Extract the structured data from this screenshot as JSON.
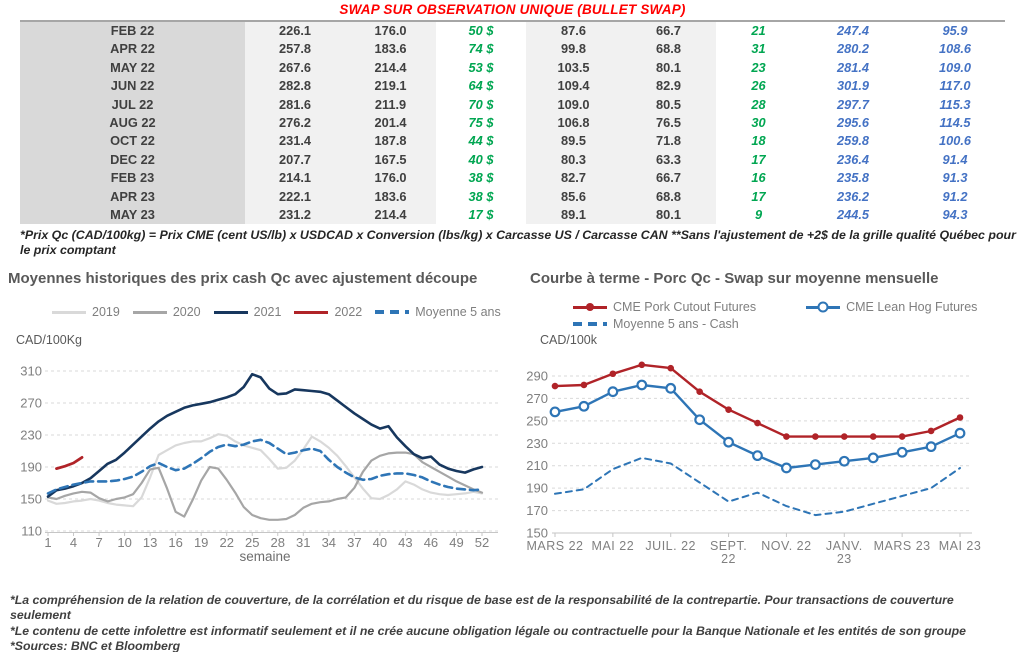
{
  "title": "SWAP SUR OBSERVATION UNIQUE (BULLET SWAP)",
  "table": {
    "rows": [
      [
        "FEB 22",
        "226.1",
        "176.0",
        "50 $",
        "87.6",
        "66.7",
        "21",
        "247.4",
        "95.9"
      ],
      [
        "APR 22",
        "257.8",
        "183.6",
        "74 $",
        "99.8",
        "68.8",
        "31",
        "280.2",
        "108.6"
      ],
      [
        "MAY 22",
        "267.6",
        "214.4",
        "53 $",
        "103.5",
        "80.1",
        "23",
        "281.4",
        "109.0"
      ],
      [
        "JUN 22",
        "282.8",
        "219.1",
        "64 $",
        "109.4",
        "82.9",
        "26",
        "301.9",
        "117.0"
      ],
      [
        "JUL 22",
        "281.6",
        "211.9",
        "70 $",
        "109.0",
        "80.5",
        "28",
        "297.7",
        "115.3"
      ],
      [
        "AUG 22",
        "276.2",
        "201.4",
        "75 $",
        "106.8",
        "76.5",
        "30",
        "295.6",
        "114.5"
      ],
      [
        "OCT 22",
        "231.4",
        "187.8",
        "44 $",
        "89.5",
        "71.8",
        "18",
        "259.8",
        "100.6"
      ],
      [
        "DEC 22",
        "207.7",
        "167.5",
        "40 $",
        "80.3",
        "63.3",
        "17",
        "236.4",
        "91.4"
      ],
      [
        "FEB 23",
        "214.1",
        "176.0",
        "38 $",
        "82.7",
        "66.7",
        "16",
        "235.8",
        "91.3"
      ],
      [
        "APR 23",
        "222.1",
        "183.6",
        "38 $",
        "85.6",
        "68.8",
        "17",
        "236.2",
        "91.2"
      ],
      [
        "MAY 23",
        "231.2",
        "214.4",
        "17 $",
        "89.1",
        "80.1",
        "9",
        "244.5",
        "94.3"
      ]
    ],
    "footnote": "*Prix Qc (CAD/100kg) = Prix CME (cent US/lb) x USDCAD x Conversion (lbs/kg) x Carcasse US / Carcasse CAN **Sans l'ajustement de +2$ de la grille qualité Québec pour le prix comptant"
  },
  "colors": {
    "title_red": "#FF0000",
    "table_green": "#00A651",
    "table_blue": "#4472C4",
    "navy": "#17375E",
    "red": "#B02328",
    "blue": "#2E75B6",
    "gray_2020": "#A6A6A6",
    "lightgray_2019": "#D9D9D9",
    "grid": "#D9D9D9",
    "axis_text": "#7F7F7F"
  },
  "chart_data": [
    {
      "type": "line",
      "title": "Moyennes historiques des prix cash Qc avec ajustement découpe",
      "ylabel": "CAD/100Kg",
      "xlabel": "semaine",
      "ylim": [
        110,
        310
      ],
      "y_ticks": [
        110,
        150,
        190,
        230,
        270,
        310
      ],
      "x_ticks": [
        1,
        4,
        7,
        10,
        13,
        16,
        19,
        22,
        25,
        28,
        31,
        34,
        37,
        40,
        43,
        46,
        49,
        52
      ],
      "grid": "dashed",
      "legend_position": "top",
      "series": [
        {
          "name": "2019",
          "color": "#D9D9D9",
          "width": 2.2,
          "x_start": 1,
          "values": [
            148,
            144,
            145,
            147,
            148,
            150,
            148,
            145,
            143,
            142,
            141,
            152,
            177,
            205,
            211,
            217,
            220,
            222,
            222,
            226,
            231,
            229,
            222,
            217,
            214,
            211,
            200,
            188,
            189,
            198,
            212,
            228,
            222,
            214,
            204,
            191,
            177,
            163,
            151,
            150,
            155,
            162,
            172,
            168,
            162,
            158,
            156,
            155,
            156,
            157,
            159,
            157
          ]
        },
        {
          "name": "2020",
          "color": "#A6A6A6",
          "width": 2.2,
          "x_start": 1,
          "values": [
            152,
            150,
            154,
            157,
            159,
            158,
            151,
            147,
            150,
            152,
            156,
            170,
            187,
            189,
            163,
            134,
            128,
            149,
            173,
            190,
            188,
            174,
            158,
            140,
            130,
            126,
            124,
            124,
            125,
            130,
            139,
            144,
            146,
            147,
            150,
            152,
            164,
            184,
            198,
            204,
            207,
            208,
            208,
            206,
            196,
            190,
            184,
            178,
            172,
            167,
            162,
            158
          ]
        },
        {
          "name": "2021",
          "color": "#17375E",
          "width": 2.6,
          "x_start": 1,
          "values": [
            153,
            161,
            163,
            166,
            170,
            176,
            185,
            194,
            199,
            208,
            218,
            228,
            238,
            247,
            254,
            259,
            264,
            267,
            269,
            271,
            274,
            277,
            281,
            290,
            306,
            302,
            288,
            281,
            282,
            287,
            286,
            285,
            284,
            281,
            273,
            265,
            257,
            250,
            243,
            238,
            241,
            227,
            216,
            206,
            201,
            203,
            193,
            188,
            185,
            183,
            187,
            190
          ]
        },
        {
          "name": "2022",
          "color": "#B02328",
          "width": 2.8,
          "x_start": 2,
          "values": [
            188,
            191,
            195,
            202
          ]
        },
        {
          "name": "Moyenne 5 ans",
          "color": "#2E75B6",
          "width": 2.6,
          "dash": "8 5",
          "x_start": 1,
          "values": [
            157,
            162,
            165,
            168,
            170,
            172,
            172,
            172,
            173,
            175,
            178,
            184,
            191,
            195,
            190,
            186,
            188,
            194,
            201,
            209,
            215,
            218,
            216,
            218,
            222,
            224,
            220,
            213,
            206,
            208,
            211,
            213,
            210,
            199,
            190,
            183,
            177,
            174,
            175,
            179,
            181,
            182,
            182,
            180,
            177,
            172,
            168,
            165,
            163,
            162,
            161,
            162
          ]
        }
      ]
    },
    {
      "type": "line",
      "title": "Courbe à terme - Porc Qc - Swap sur moyenne mensuelle",
      "ylabel": "CAD/100k",
      "xlabel": "",
      "ylim": [
        150,
        290
      ],
      "y_ticks": [
        150,
        170,
        190,
        210,
        230,
        250,
        270,
        290
      ],
      "x_tick_labels": [
        [
          "MARS 22"
        ],
        [
          "MAI 22"
        ],
        [
          "JUIL. 22"
        ],
        [
          "SEPT.",
          "22"
        ],
        [
          "NOV. 22"
        ],
        [
          "JANV.",
          "23"
        ],
        [
          "MARS 23"
        ],
        [
          "MAI 23"
        ]
      ],
      "grid": "dashed",
      "legend_position": "top",
      "legend": [
        {
          "label": "CME Pork Cutout Futures",
          "swatch": "line-dot-filled",
          "color": "#B02328"
        },
        {
          "label": "CME Lean Hog Futures",
          "swatch": "line-dot-open",
          "color": "#2E75B6"
        },
        {
          "label": "Moyenne 5 ans - Cash",
          "swatch": "dashed",
          "color": "#2E75B6"
        }
      ],
      "series": [
        {
          "name": "Moyenne 5 ans - Cash",
          "color": "#2E75B6",
          "width": 2,
          "dash": "6 5",
          "values": [
            185,
            189,
            207,
            217,
            212,
            195,
            178,
            186,
            174,
            166,
            169,
            176,
            183,
            190,
            208
          ]
        },
        {
          "name": "CME Lean Hog Futures",
          "color": "#2E75B6",
          "width": 2.4,
          "marker": "open",
          "values": [
            258,
            263,
            276,
            282,
            279,
            251,
            231,
            219,
            208,
            211,
            214,
            217,
            222,
            227,
            239
          ]
        },
        {
          "name": "CME Pork Cutout Futures",
          "color": "#B02328",
          "width": 2.4,
          "marker": "filled",
          "values": [
            281,
            282,
            292,
            300,
            297,
            276,
            260,
            248,
            236,
            236,
            236,
            236,
            236,
            241,
            253
          ]
        }
      ]
    }
  ],
  "footnotes": [
    "*La compréhension de la relation de couverture, de la corrélation et du risque de base est de la responsabilité de la contrepartie. Pour transactions de couverture seulement",
    "*Le contenu de cette infolettre est informatif seulement et il ne crée aucune obligation légale ou contractuelle pour la Banque Nationale et les entités de son groupe",
    "*Sources: BNC et Bloomberg"
  ]
}
